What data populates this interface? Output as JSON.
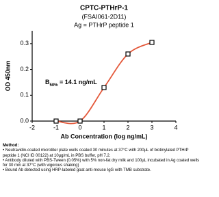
{
  "chart_data": {
    "type": "scatter",
    "title": "CPTC-PTHrP-1",
    "subtitle": "(FSAI061-2D11)",
    "antigen": "Ag = PTHrP peptide 1",
    "x_label": "Ab Concentration (log ng/mL)",
    "y_label": "OD 450nm",
    "annotation": [
      "B",
      "50%",
      " = 14.1 ng/mL"
    ],
    "x": [
      -1,
      0,
      1,
      2,
      3
    ],
    "values": [
      0.0,
      0.0,
      0.13,
      0.26,
      0.305
    ],
    "color": "#e4583a",
    "xlim": [
      -2,
      4
    ],
    "xticks": [
      -2,
      -1,
      0,
      1,
      2,
      3,
      4
    ],
    "ylim": [
      0,
      0.35
    ],
    "yticks": [
      {
        "value": 0,
        "label": "0.0"
      },
      0.1,
      0.2,
      0.3
    ]
  },
  "method": {
    "title": "Method:",
    "items": [
      "• Neutravidin-coated microtiter plate wells coated 30 minutes at 37°C  with 200µL of biotinylated PTHrP peptide 1 (NCI ID 00122) at 10µg/mL in PBS buffer, pH 7.2.",
      "• Antibody diluted with PBS-Tween (0.05%) with 5% non-fat dry milk and 100µL incubated in Ag coated wells for 30 min at 37°C (with vigorous shaking)",
      "• Bound Ab detected using HRP-labeled goat anti-mouse IgG with TMB substrate."
    ]
  }
}
